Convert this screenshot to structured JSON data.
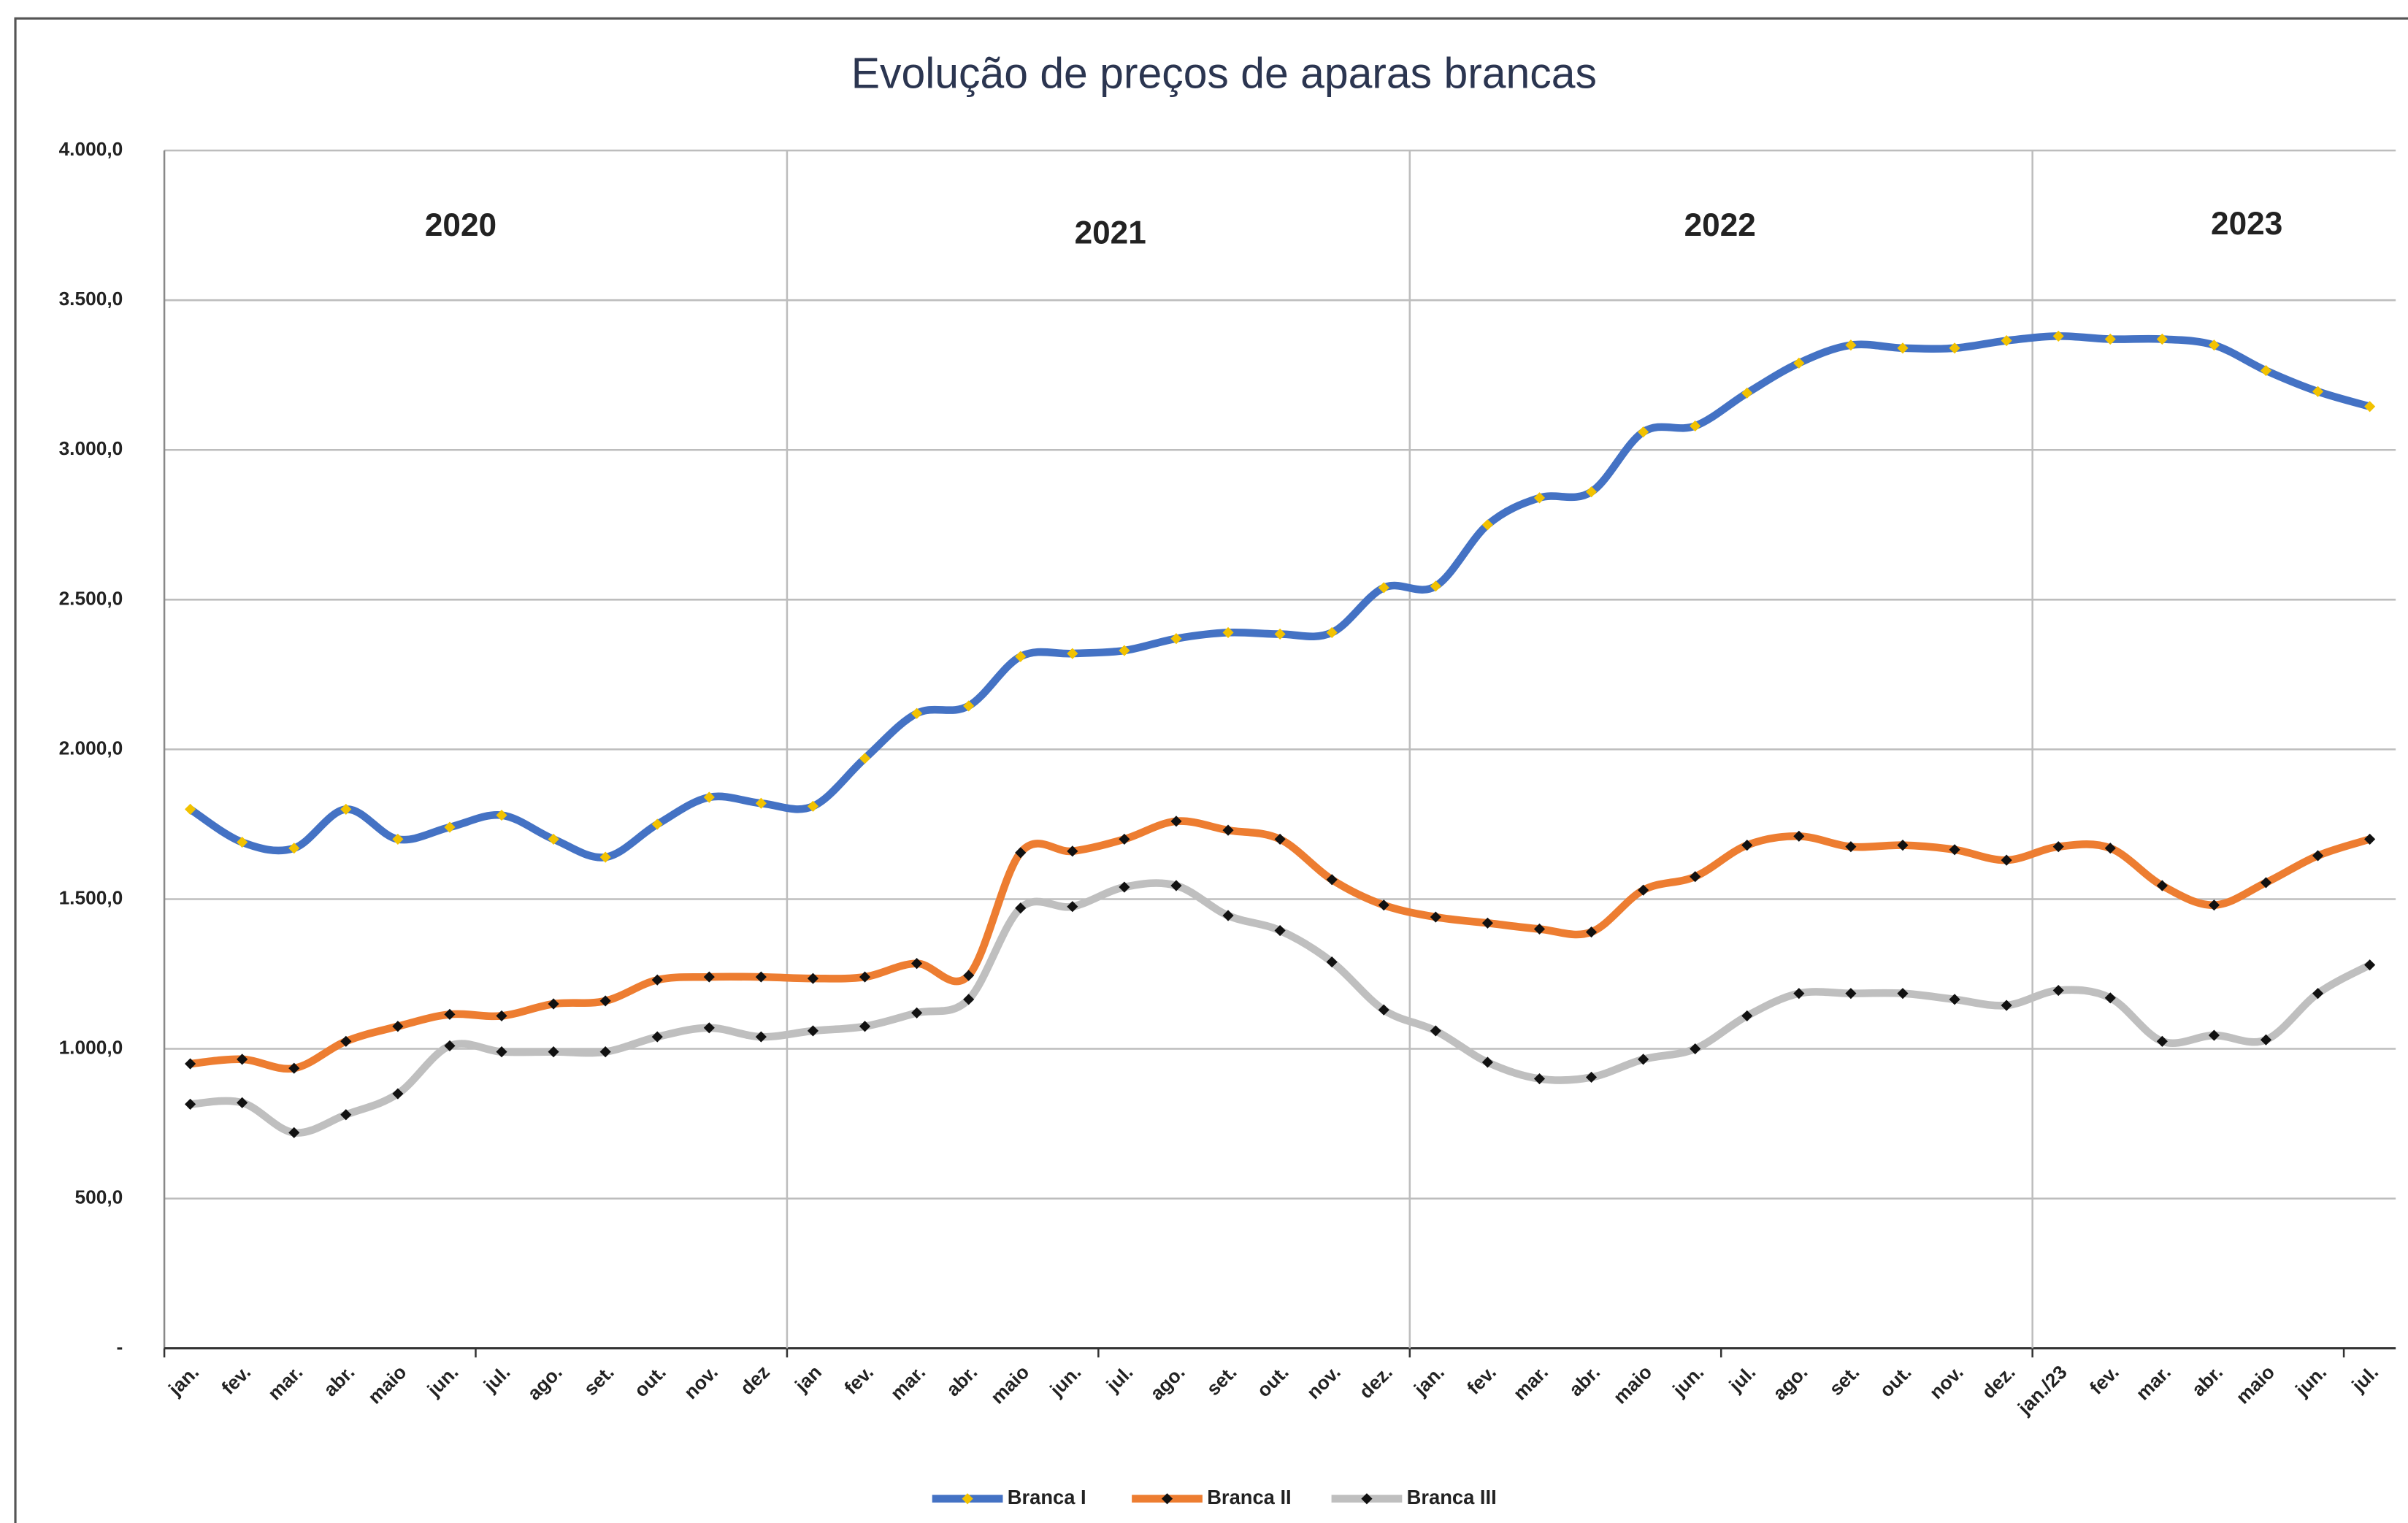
{
  "chart_data": {
    "type": "line",
    "title": "Evolução de preços de aparas brancas",
    "annotations": [
      "2020",
      "2021",
      "2022",
      "2023"
    ],
    "categories": [
      "jan.",
      "fev.",
      "mar.",
      "abr.",
      "maio",
      "jun.",
      "jul.",
      "ago.",
      "set.",
      "out.",
      "nov.",
      "dez",
      "jan",
      "fev.",
      "mar.",
      "abr.",
      "maio",
      "jun.",
      "jul.",
      "ago.",
      "set.",
      "out.",
      "nov.",
      "dez.",
      "jan.",
      "fev.",
      "mar.",
      "abr.",
      "maio",
      "jun.",
      "jul.",
      "ago.",
      "set.",
      "out.",
      "nov.",
      "dez.",
      "jan./23",
      "fev.",
      "mar.",
      "abr.",
      "maio",
      "jun.",
      "jul."
    ],
    "series": [
      {
        "name": "Branca I",
        "color": "#4472c4",
        "marker_color": "#f2c200",
        "values": [
          1800,
          1690,
          1670,
          1800,
          1700,
          1740,
          1780,
          1700,
          1640,
          1750,
          1840,
          1820,
          1810,
          1970,
          2120,
          2145,
          2310,
          2320,
          2330,
          2370,
          2390,
          2385,
          2390,
          2540,
          2545,
          2750,
          2840,
          2860,
          3060,
          3080,
          3190,
          3290,
          3350,
          3340,
          3340,
          3365,
          3380,
          3370,
          3370,
          3350,
          3265,
          3195,
          3145
        ]
      },
      {
        "name": "Branca II",
        "color": "#ed7d31",
        "marker_color": "#111111",
        "values": [
          950,
          965,
          935,
          1025,
          1075,
          1115,
          1110,
          1150,
          1160,
          1230,
          1240,
          1240,
          1235,
          1240,
          1285,
          1245,
          1655,
          1660,
          1700,
          1760,
          1730,
          1700,
          1565,
          1480,
          1440,
          1420,
          1400,
          1390,
          1530,
          1575,
          1680,
          1710,
          1675,
          1680,
          1665,
          1630,
          1675,
          1670,
          1545,
          1480,
          1555,
          1645,
          1700
        ]
      },
      {
        "name": "Branca III",
        "color": "#bfbfbf",
        "marker_color": "#111111",
        "values": [
          815,
          820,
          720,
          780,
          850,
          1010,
          990,
          990,
          990,
          1040,
          1070,
          1040,
          1060,
          1075,
          1120,
          1165,
          1470,
          1475,
          1540,
          1545,
          1445,
          1395,
          1290,
          1130,
          1060,
          955,
          900,
          905,
          965,
          1000,
          1110,
          1185,
          1185,
          1185,
          1165,
          1145,
          1195,
          1170,
          1025,
          1045,
          1030,
          1185,
          1280
        ]
      }
    ],
    "ylim": [
      0,
      4000
    ],
    "yticks": [
      {
        "value": 0,
        "label": "-"
      },
      {
        "value": 500,
        "label": "500,0"
      },
      {
        "value": 1000,
        "label": "1.000,0"
      },
      {
        "value": 1500,
        "label": "1.500,0"
      },
      {
        "value": 2000,
        "label": "2.000,0"
      },
      {
        "value": 2500,
        "label": "2.500,0"
      },
      {
        "value": 3000,
        "label": "3.000,0"
      },
      {
        "value": 3500,
        "label": "3.500,0"
      },
      {
        "value": 4000,
        "label": "4.000,0"
      }
    ],
    "grid": true,
    "legend": "bottom",
    "smooth": true
  }
}
